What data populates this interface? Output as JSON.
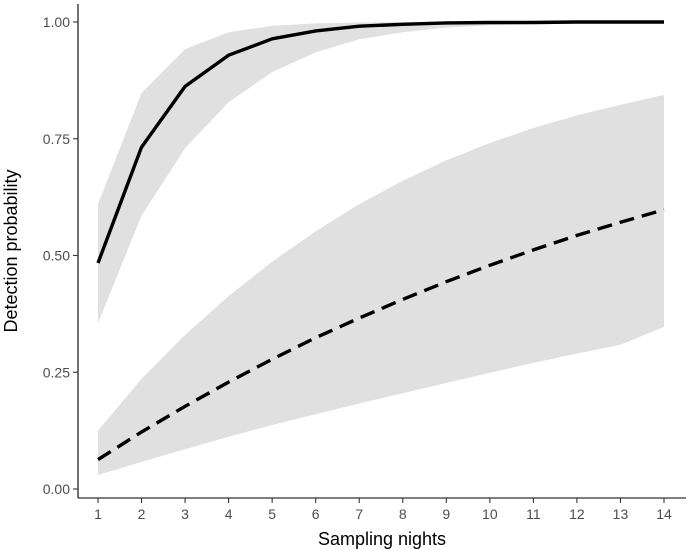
{
  "chart_data": {
    "type": "line",
    "title": "",
    "xlabel": "Sampling nights",
    "ylabel": "Detection probability",
    "xlim": [
      1,
      14
    ],
    "ylim": [
      0,
      1
    ],
    "x": [
      1,
      2,
      3,
      4,
      5,
      6,
      7,
      8,
      9,
      10,
      11,
      12,
      13,
      14
    ],
    "x_ticks": [
      "1",
      "2",
      "3",
      "4",
      "5",
      "6",
      "7",
      "8",
      "9",
      "10",
      "11",
      "12",
      "13",
      "14"
    ],
    "y_ticks": [
      {
        "value": 0.0,
        "label": "0.00"
      },
      {
        "value": 0.25,
        "label": "0.25"
      },
      {
        "value": 0.5,
        "label": "0.50"
      },
      {
        "value": 0.75,
        "label": "0.75"
      },
      {
        "value": 1.0,
        "label": "1.00"
      }
    ],
    "grid": false,
    "series": [
      {
        "line_style": "solid",
        "color": "#000000",
        "ribbon_color": "#e0e0e0",
        "values": [
          0.484,
          0.732,
          0.862,
          0.929,
          0.964,
          0.981,
          0.991,
          0.995,
          0.998,
          0.999,
          0.999,
          1.0,
          1.0,
          1.0
        ],
        "lower": [
          0.355,
          0.585,
          0.73,
          0.828,
          0.893,
          0.935,
          0.963,
          0.978,
          0.988,
          0.993,
          0.996,
          0.998,
          0.999,
          0.999
        ],
        "upper": [
          0.61,
          0.848,
          0.942,
          0.978,
          0.992,
          0.997,
          0.999,
          1.0,
          1.0,
          1.0,
          1.0,
          1.0,
          1.0,
          1.0
        ]
      },
      {
        "line_style": "dashed",
        "color": "#000000",
        "ribbon_color": "#e0e0e0",
        "values": [
          0.063,
          0.122,
          0.177,
          0.229,
          0.278,
          0.324,
          0.366,
          0.406,
          0.444,
          0.479,
          0.512,
          0.543,
          0.571,
          0.598
        ],
        "lower": [
          0.03,
          0.058,
          0.085,
          0.112,
          0.137,
          0.16,
          0.183,
          0.205,
          0.227,
          0.249,
          0.27,
          0.29,
          0.309,
          0.347
        ],
        "upper": [
          0.125,
          0.236,
          0.33,
          0.413,
          0.487,
          0.552,
          0.61,
          0.66,
          0.704,
          0.741,
          0.773,
          0.8,
          0.823,
          0.844
        ]
      }
    ]
  }
}
